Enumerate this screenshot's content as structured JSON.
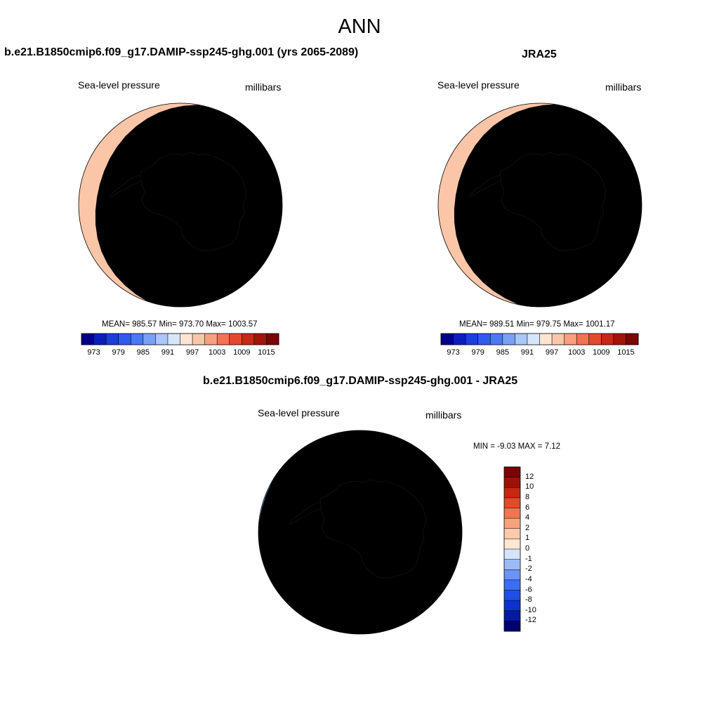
{
  "figure": {
    "title": "ANN",
    "variable": "Sea-level pressure",
    "units": "millibars"
  },
  "panels": [
    {
      "title": "b.e21.B1850cmip6.f09_g17.DAMIP-ssp245-ghg.001 (yrs 2065-2089)",
      "stats": "MEAN= 985.57  Min= 973.70  Max= 1003.57",
      "colorbar_ticks": [
        "973",
        "979",
        "985",
        "991",
        "997",
        "1003",
        "1009",
        "1015"
      ]
    },
    {
      "title": "JRA25",
      "stats": "MEAN= 989.51  Min= 979.75  Max= 1001.17",
      "colorbar_ticks": [
        "973",
        "979",
        "985",
        "991",
        "997",
        "1003",
        "1009",
        "1015"
      ]
    },
    {
      "title": "b.e21.B1850cmip6.f09_g17.DAMIP-ssp245-ghg.001 - JRA25",
      "stats": "MIN =  -9.03 MAX =   7.12",
      "colorbar_ticks": [
        "12",
        "10",
        "8",
        "6",
        "4",
        "2",
        "1",
        "0",
        "-1",
        "-2",
        "-4",
        "-6",
        "-8",
        "-10",
        "-12"
      ]
    }
  ],
  "chart_data": [
    {
      "type": "heatmap",
      "projection": "south-polar-stereographic",
      "title": "b.e21.B1850cmip6.f09_g17.DAMIP-ssp245-ghg.001 (yrs 2065-2089)",
      "variable": "Sea-level pressure",
      "units": "millibars",
      "mean": 985.57,
      "min": 973.7,
      "max": 1003.57,
      "contour_levels": [
        973,
        976,
        979,
        982,
        985,
        988,
        991,
        994,
        997,
        1000,
        1003,
        1006,
        1009,
        1012,
        1015
      ],
      "colors": [
        "#00008a",
        "#0b1fb8",
        "#1a3ee0",
        "#2f5bee",
        "#4b7af0",
        "#7aa0f5",
        "#aac6fa",
        "#d5e6fc",
        "#fde5d2",
        "#fbc6a8",
        "#f7a07c",
        "#f27351",
        "#e24a2e",
        "#c42a14",
        "#a11608",
        "#7a0606"
      ]
    },
    {
      "type": "heatmap",
      "projection": "south-polar-stereographic",
      "title": "JRA25",
      "variable": "Sea-level pressure",
      "units": "millibars",
      "mean": 989.51,
      "min": 979.75,
      "max": 1001.17,
      "contour_levels": [
        973,
        976,
        979,
        982,
        985,
        988,
        991,
        994,
        997,
        1000,
        1003,
        1006,
        1009,
        1012,
        1015
      ],
      "colors": [
        "#00008a",
        "#0b1fb8",
        "#1a3ee0",
        "#2f5bee",
        "#4b7af0",
        "#7aa0f5",
        "#aac6fa",
        "#d5e6fc",
        "#fde5d2",
        "#fbc6a8",
        "#f7a07c",
        "#f27351",
        "#e24a2e",
        "#c42a14",
        "#a11608",
        "#7a0606"
      ]
    },
    {
      "type": "heatmap",
      "projection": "south-polar-stereographic",
      "title": "b.e21.B1850cmip6.f09_g17.DAMIP-ssp245-ghg.001 - JRA25",
      "variable": "Sea-level pressure",
      "units": "millibars",
      "min": -9.03,
      "max": 7.12,
      "contour_levels": [
        -12,
        -10,
        -8,
        -6,
        -4,
        -2,
        -1,
        0,
        1,
        2,
        4,
        6,
        8,
        10,
        12
      ],
      "colors": [
        "#00006e",
        "#0019a8",
        "#0b33cc",
        "#1f4fe6",
        "#3d6ef2",
        "#6a94f5",
        "#9dbaf8",
        "#d4e4fb",
        "#fde6d4",
        "#fbc9ab",
        "#f7a37e",
        "#f27550",
        "#e24a28",
        "#c42a10",
        "#9e1206",
        "#7a0404"
      ]
    }
  ]
}
